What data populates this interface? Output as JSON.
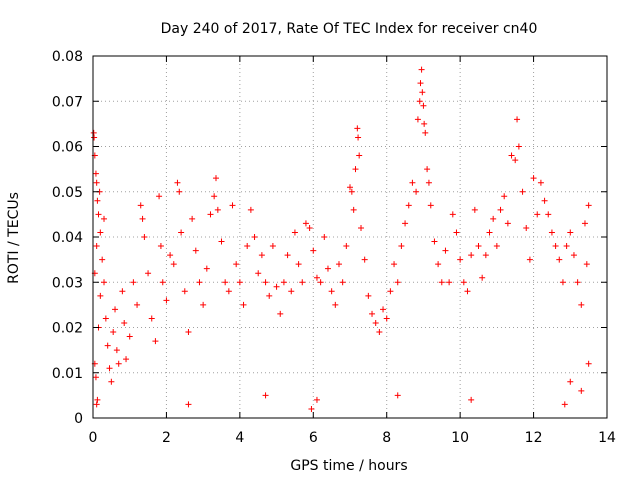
{
  "chart_data": {
    "type": "scatter",
    "title": "Day 240 of 2017, Rate Of TEC Index for receiver cn40",
    "xlabel": "GPS time / hours",
    "ylabel": "ROTI / TECUs",
    "xlim": [
      0,
      14
    ],
    "ylim": [
      0,
      0.08
    ],
    "xticks": [
      0,
      2,
      4,
      6,
      8,
      10,
      12,
      14
    ],
    "yticks": [
      0,
      0.01,
      0.02,
      0.03,
      0.04,
      0.05,
      0.06,
      0.07,
      0.08
    ],
    "xtick_labels": [
      "0",
      "2",
      "4",
      "6",
      "8",
      "10",
      "12",
      "14"
    ],
    "ytick_labels": [
      "0",
      "0.01",
      "0.02",
      "0.03",
      "0.04",
      "0.05",
      "0.06",
      "0.07",
      "0.08"
    ],
    "grid": true,
    "marker": "+",
    "color": "#ff0000",
    "series": [
      {
        "name": "ROTI",
        "points": [
          [
            0.02,
            0.063
          ],
          [
            0.03,
            0.062
          ],
          [
            0.05,
            0.058
          ],
          [
            0.08,
            0.054
          ],
          [
            0.1,
            0.052
          ],
          [
            0.12,
            0.048
          ],
          [
            0.15,
            0.045
          ],
          [
            0.18,
            0.05
          ],
          [
            0.05,
            0.032
          ],
          [
            0.1,
            0.038
          ],
          [
            0.2,
            0.041
          ],
          [
            0.25,
            0.035
          ],
          [
            0.3,
            0.044
          ],
          [
            0.05,
            0.012
          ],
          [
            0.08,
            0.009
          ],
          [
            0.12,
            0.004
          ],
          [
            0.15,
            0.02
          ],
          [
            0.2,
            0.027
          ],
          [
            0.3,
            0.03
          ],
          [
            0.35,
            0.022
          ],
          [
            0.4,
            0.016
          ],
          [
            0.45,
            0.011
          ],
          [
            0.5,
            0.008
          ],
          [
            0.55,
            0.019
          ],
          [
            0.6,
            0.024
          ],
          [
            0.65,
            0.015
          ],
          [
            0.7,
            0.012
          ],
          [
            0.8,
            0.028
          ],
          [
            0.85,
            0.021
          ],
          [
            0.9,
            0.013
          ],
          [
            1.0,
            0.018
          ],
          [
            1.1,
            0.03
          ],
          [
            1.2,
            0.025
          ],
          [
            1.3,
            0.047
          ],
          [
            1.35,
            0.044
          ],
          [
            1.4,
            0.04
          ],
          [
            1.5,
            0.032
          ],
          [
            1.6,
            0.022
          ],
          [
            1.7,
            0.017
          ],
          [
            1.8,
            0.049
          ],
          [
            1.85,
            0.038
          ],
          [
            1.9,
            0.03
          ],
          [
            2.0,
            0.026
          ],
          [
            2.1,
            0.036
          ],
          [
            2.2,
            0.034
          ],
          [
            2.3,
            0.052
          ],
          [
            2.35,
            0.05
          ],
          [
            2.4,
            0.041
          ],
          [
            2.5,
            0.028
          ],
          [
            2.6,
            0.019
          ],
          [
            2.7,
            0.044
          ],
          [
            2.8,
            0.037
          ],
          [
            2.9,
            0.03
          ],
          [
            3.0,
            0.025
          ],
          [
            3.1,
            0.033
          ],
          [
            3.2,
            0.045
          ],
          [
            3.3,
            0.049
          ],
          [
            3.35,
            0.053
          ],
          [
            3.4,
            0.046
          ],
          [
            3.5,
            0.039
          ],
          [
            3.6,
            0.03
          ],
          [
            3.7,
            0.028
          ],
          [
            3.8,
            0.047
          ],
          [
            3.9,
            0.034
          ],
          [
            4.0,
            0.03
          ],
          [
            4.1,
            0.025
          ],
          [
            4.2,
            0.038
          ],
          [
            4.3,
            0.046
          ],
          [
            4.4,
            0.04
          ],
          [
            4.5,
            0.032
          ],
          [
            4.6,
            0.036
          ],
          [
            4.7,
            0.03
          ],
          [
            4.8,
            0.027
          ],
          [
            4.9,
            0.038
          ],
          [
            5.0,
            0.029
          ],
          [
            5.1,
            0.023
          ],
          [
            5.2,
            0.03
          ],
          [
            5.3,
            0.036
          ],
          [
            5.4,
            0.028
          ],
          [
            5.5,
            0.041
          ],
          [
            5.6,
            0.034
          ],
          [
            5.7,
            0.03
          ],
          [
            5.8,
            0.043
          ],
          [
            5.9,
            0.042
          ],
          [
            6.0,
            0.037
          ],
          [
            6.1,
            0.031
          ],
          [
            6.2,
            0.03
          ],
          [
            6.3,
            0.04
          ],
          [
            6.4,
            0.033
          ],
          [
            6.5,
            0.028
          ],
          [
            6.6,
            0.025
          ],
          [
            6.7,
            0.034
          ],
          [
            6.8,
            0.03
          ],
          [
            6.9,
            0.038
          ],
          [
            7.0,
            0.051
          ],
          [
            7.05,
            0.05
          ],
          [
            7.1,
            0.046
          ],
          [
            7.15,
            0.055
          ],
          [
            7.2,
            0.064
          ],
          [
            7.22,
            0.062
          ],
          [
            7.25,
            0.058
          ],
          [
            7.3,
            0.042
          ],
          [
            7.4,
            0.035
          ],
          [
            7.5,
            0.027
          ],
          [
            7.6,
            0.023
          ],
          [
            7.7,
            0.021
          ],
          [
            7.8,
            0.019
          ],
          [
            7.9,
            0.024
          ],
          [
            8.0,
            0.022
          ],
          [
            8.1,
            0.028
          ],
          [
            8.2,
            0.034
          ],
          [
            8.3,
            0.03
          ],
          [
            8.4,
            0.038
          ],
          [
            8.5,
            0.043
          ],
          [
            8.6,
            0.047
          ],
          [
            8.7,
            0.052
          ],
          [
            8.8,
            0.05
          ],
          [
            8.85,
            0.066
          ],
          [
            8.9,
            0.07
          ],
          [
            8.92,
            0.074
          ],
          [
            8.95,
            0.077
          ],
          [
            8.97,
            0.072
          ],
          [
            9.0,
            0.069
          ],
          [
            9.02,
            0.065
          ],
          [
            9.05,
            0.063
          ],
          [
            9.1,
            0.055
          ],
          [
            9.15,
            0.052
          ],
          [
            9.2,
            0.047
          ],
          [
            9.3,
            0.039
          ],
          [
            9.4,
            0.034
          ],
          [
            9.5,
            0.03
          ],
          [
            9.6,
            0.037
          ],
          [
            9.7,
            0.03
          ],
          [
            9.8,
            0.045
          ],
          [
            9.9,
            0.041
          ],
          [
            10.0,
            0.035
          ],
          [
            10.1,
            0.03
          ],
          [
            10.2,
            0.028
          ],
          [
            10.3,
            0.036
          ],
          [
            10.4,
            0.046
          ],
          [
            10.5,
            0.038
          ],
          [
            10.6,
            0.031
          ],
          [
            10.7,
            0.036
          ],
          [
            10.8,
            0.041
          ],
          [
            10.9,
            0.044
          ],
          [
            11.0,
            0.038
          ],
          [
            11.1,
            0.046
          ],
          [
            11.2,
            0.049
          ],
          [
            11.3,
            0.043
          ],
          [
            11.4,
            0.058
          ],
          [
            11.5,
            0.057
          ],
          [
            11.55,
            0.066
          ],
          [
            11.6,
            0.06
          ],
          [
            11.7,
            0.05
          ],
          [
            11.8,
            0.042
          ],
          [
            11.9,
            0.035
          ],
          [
            12.0,
            0.053
          ],
          [
            12.1,
            0.045
          ],
          [
            12.2,
            0.052
          ],
          [
            12.3,
            0.048
          ],
          [
            12.4,
            0.045
          ],
          [
            12.5,
            0.041
          ],
          [
            12.6,
            0.038
          ],
          [
            12.7,
            0.035
          ],
          [
            12.8,
            0.03
          ],
          [
            12.9,
            0.038
          ],
          [
            13.0,
            0.041
          ],
          [
            13.1,
            0.036
          ],
          [
            13.2,
            0.03
          ],
          [
            13.3,
            0.025
          ],
          [
            13.4,
            0.043
          ],
          [
            13.5,
            0.047
          ],
          [
            13.45,
            0.034
          ],
          [
            13.5,
            0.012
          ],
          [
            13.3,
            0.006
          ],
          [
            13.0,
            0.008
          ],
          [
            5.95,
            0.002
          ],
          [
            2.6,
            0.003
          ],
          [
            12.85,
            0.003
          ],
          [
            6.1,
            0.004
          ],
          [
            0.1,
            0.003
          ],
          [
            8.3,
            0.005
          ],
          [
            4.7,
            0.005
          ],
          [
            10.3,
            0.004
          ]
        ]
      }
    ]
  }
}
